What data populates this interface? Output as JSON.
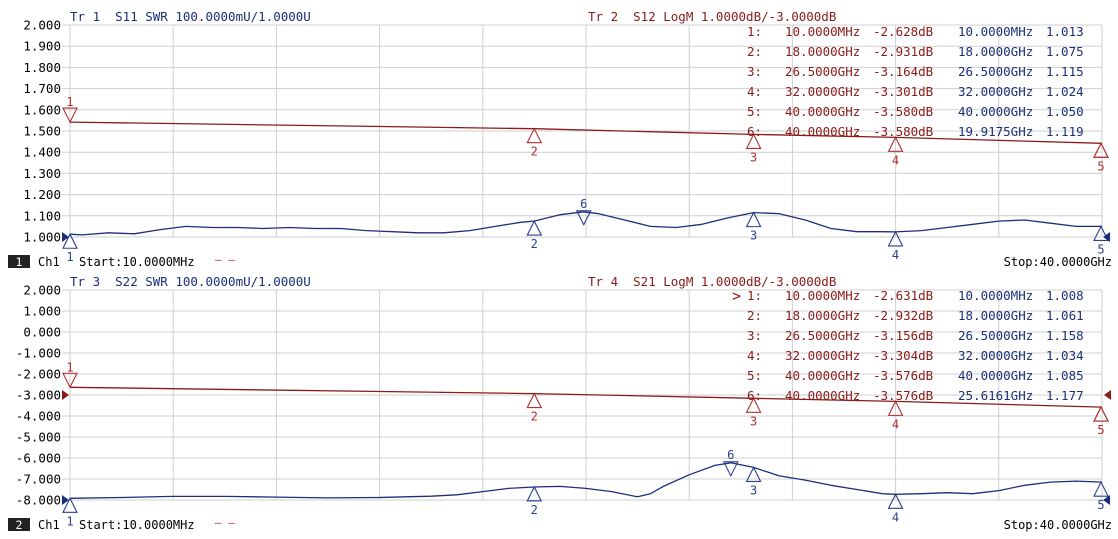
{
  "colors": {
    "trace_blue": "#1b2f7a",
    "trace_red": "#8b1a1a",
    "marker_blue": "#2a3f8f",
    "marker_red": "#b03030",
    "grid": "#cfcfcf",
    "channel_badge_bg": "#222222",
    "channel_badge_fg": "#ffffff"
  },
  "panels": [
    {
      "channel_badge": "1",
      "channel_label": "Ch1",
      "start_label": "Start:10.0000MHz",
      "stop_label": "Stop:40.0000GHz",
      "channel_dash": "— —",
      "tr_a": "Tr 1  S11 SWR 100.0000mU/1.0000U",
      "tr_b": "Tr 2  S12 LogM 1.0000dB/-3.0000dB",
      "active_mark": "",
      "marker_rows": [
        {
          "num": "1:",
          "freq_a": "10.0000MHz",
          "val_a": "-2.628dB",
          "freq_b": "10.0000MHz",
          "val_b": "1.013"
        },
        {
          "num": "2:",
          "freq_a": "18.0000GHz",
          "val_a": "-2.931dB",
          "freq_b": "18.0000GHz",
          "val_b": "1.075"
        },
        {
          "num": "3:",
          "freq_a": "26.5000GHz",
          "val_a": "-3.164dB",
          "freq_b": "26.5000GHz",
          "val_b": "1.115"
        },
        {
          "num": "4:",
          "freq_a": "32.0000GHz",
          "val_a": "-3.301dB",
          "freq_b": "32.0000GHz",
          "val_b": "1.024"
        },
        {
          "num": "5:",
          "freq_a": "40.0000GHz",
          "val_a": "-3.580dB",
          "freq_b": "40.0000GHz",
          "val_b": "1.050"
        },
        {
          "num": "6:",
          "freq_a": "40.0000GHz",
          "val_a": "-3.580dB",
          "freq_b": "19.9175GHz",
          "val_b": "1.119"
        }
      ]
    },
    {
      "channel_badge": "2",
      "channel_label": "Ch1",
      "start_label": "Start:10.0000MHz",
      "stop_label": "Stop:40.0000GHz",
      "channel_dash": "— —",
      "tr_a": "Tr 3  S22 SWR 100.0000mU/1.0000U",
      "tr_b": "Tr 4  S21 LogM 1.0000dB/-3.0000dB",
      "active_mark": ">",
      "marker_rows": [
        {
          "num": "1:",
          "freq_a": "10.0000MHz",
          "val_a": "-2.631dB",
          "freq_b": "10.0000MHz",
          "val_b": "1.008"
        },
        {
          "num": "2:",
          "freq_a": "18.0000GHz",
          "val_a": "-2.932dB",
          "freq_b": "18.0000GHz",
          "val_b": "1.061"
        },
        {
          "num": "3:",
          "freq_a": "26.5000GHz",
          "val_a": "-3.156dB",
          "freq_b": "26.5000GHz",
          "val_b": "1.158"
        },
        {
          "num": "4:",
          "freq_a": "32.0000GHz",
          "val_a": "-3.304dB",
          "freq_b": "32.0000GHz",
          "val_b": "1.034"
        },
        {
          "num": "5:",
          "freq_a": "40.0000GHz",
          "val_a": "-3.576dB",
          "freq_b": "40.0000GHz",
          "val_b": "1.085"
        },
        {
          "num": "6:",
          "freq_a": "40.0000GHz",
          "val_a": "-3.576dB",
          "freq_b": "25.6161GHz",
          "val_b": "1.177"
        }
      ]
    }
  ],
  "chart_data": [
    {
      "type": "line",
      "x_unit": "GHz",
      "xlim": [
        0.01,
        40
      ],
      "ylim": [
        1.0,
        2.0
      ],
      "yticks": [
        "2.000",
        "1.900",
        "1.800",
        "1.700",
        "1.600",
        "1.500",
        "1.400",
        "1.300",
        "1.200",
        "1.100",
        "1.000"
      ],
      "series": [
        {
          "color": "blue",
          "x": [
            0.01,
            0.5,
            1.5,
            2.5,
            3.5,
            4.5,
            5.5,
            6.5,
            7.5,
            8.5,
            9.5,
            10.5,
            11.5,
            12.5,
            13.5,
            14.5,
            15.5,
            16.5,
            17.5,
            18.0,
            18.5,
            19.0,
            19.9175,
            20.5,
            21.5,
            22.5,
            23.5,
            24.5,
            25.5,
            26.5,
            27.5,
            28.5,
            29.5,
            30.5,
            31.5,
            32.0,
            33.0,
            34.0,
            35.0,
            36.0,
            37.0,
            38.0,
            39.0,
            40.0
          ],
          "y": [
            1.013,
            1.01,
            1.02,
            1.015,
            1.035,
            1.05,
            1.045,
            1.045,
            1.04,
            1.045,
            1.04,
            1.04,
            1.03,
            1.025,
            1.02,
            1.02,
            1.03,
            1.05,
            1.07,
            1.075,
            1.09,
            1.105,
            1.119,
            1.11,
            1.08,
            1.05,
            1.045,
            1.06,
            1.09,
            1.115,
            1.11,
            1.08,
            1.04,
            1.025,
            1.025,
            1.024,
            1.03,
            1.045,
            1.06,
            1.075,
            1.08,
            1.065,
            1.05,
            1.05
          ]
        },
        {
          "color": "red",
          "x": [
            0.01,
            18.0,
            26.5,
            32.0,
            40.0
          ],
          "y": [
            1.542,
            1.511,
            1.484,
            1.47,
            1.442
          ]
        }
      ],
      "markers": [
        {
          "label": "1",
          "trace": "red",
          "x": 0.01,
          "y": 1.542
        },
        {
          "label": "2",
          "trace": "red",
          "x": 18.0,
          "y": 1.511
        },
        {
          "label": "3",
          "trace": "red",
          "x": 26.5,
          "y": 1.484
        },
        {
          "label": "4",
          "trace": "red",
          "x": 32.0,
          "y": 1.47
        },
        {
          "label": "5",
          "trace": "red",
          "x": 40.0,
          "y": 1.442
        },
        {
          "label": "6",
          "trace": "red",
          "x": 40.0,
          "y": 1.442
        },
        {
          "label": "1",
          "trace": "blue",
          "x": 0.01,
          "y": 1.013
        },
        {
          "label": "2",
          "trace": "blue",
          "x": 18.0,
          "y": 1.075
        },
        {
          "label": "3",
          "trace": "blue",
          "x": 26.5,
          "y": 1.115
        },
        {
          "label": "4",
          "trace": "blue",
          "x": 32.0,
          "y": 1.024
        },
        {
          "label": "5",
          "trace": "blue",
          "x": 40.0,
          "y": 1.05
        },
        {
          "label": "6",
          "trace": "blue",
          "x": 19.9175,
          "y": 1.119
        }
      ]
    },
    {
      "type": "line",
      "x_unit": "GHz",
      "xlim": [
        0.01,
        40
      ],
      "ylim": [
        -8.0,
        2.0
      ],
      "yticks": [
        "2.000",
        "1.000",
        "0.000",
        "-1.000",
        "-2.000",
        "-3.000",
        "-4.000",
        "-5.000",
        "-6.000",
        "-7.000",
        "-8.000"
      ],
      "series": [
        {
          "color": "blue",
          "x": [
            0.01,
            2.0,
            4.0,
            6.0,
            8.0,
            10.0,
            12.0,
            14.0,
            15.0,
            16.0,
            17.0,
            18.0,
            19.0,
            20.0,
            21.0,
            22.0,
            22.5,
            23.0,
            24.0,
            25.0,
            25.6161,
            26.5,
            27.5,
            28.5,
            29.5,
            30.5,
            31.5,
            32.0,
            33.0,
            34.0,
            35.0,
            36.0,
            37.0,
            38.0,
            39.0,
            40.0
          ],
          "y": [
            -7.92,
            -7.88,
            -7.83,
            -7.83,
            -7.86,
            -7.9,
            -7.88,
            -7.82,
            -7.75,
            -7.6,
            -7.45,
            -7.38,
            -7.35,
            -7.45,
            -7.6,
            -7.85,
            -7.7,
            -7.35,
            -6.8,
            -6.35,
            -6.23,
            -6.45,
            -6.85,
            -7.05,
            -7.3,
            -7.5,
            -7.7,
            -7.73,
            -7.7,
            -7.65,
            -7.7,
            -7.55,
            -7.3,
            -7.15,
            -7.1,
            -7.15
          ]
        },
        {
          "color": "red",
          "x": [
            0.01,
            18.0,
            26.5,
            32.0,
            40.0
          ],
          "y": [
            -2.631,
            -2.932,
            -3.156,
            -3.304,
            -3.576
          ]
        }
      ],
      "markers": [
        {
          "label": "1",
          "trace": "red",
          "x": 0.01,
          "y": -2.631
        },
        {
          "label": "2",
          "trace": "red",
          "x": 18.0,
          "y": -2.932
        },
        {
          "label": "3",
          "trace": "red",
          "x": 26.5,
          "y": -3.156
        },
        {
          "label": "4",
          "trace": "red",
          "x": 32.0,
          "y": -3.304
        },
        {
          "label": "5",
          "trace": "red",
          "x": 40.0,
          "y": -3.576
        },
        {
          "label": "6",
          "trace": "red",
          "x": 40.0,
          "y": -3.576
        },
        {
          "label": "1",
          "trace": "blue",
          "x": 0.01,
          "y": -7.92
        },
        {
          "label": "2",
          "trace": "blue",
          "x": 18.0,
          "y": -7.38
        },
        {
          "label": "3",
          "trace": "blue",
          "x": 26.5,
          "y": -6.45
        },
        {
          "label": "4",
          "trace": "blue",
          "x": 32.0,
          "y": -7.73
        },
        {
          "label": "5",
          "trace": "blue",
          "x": 40.0,
          "y": -7.15
        },
        {
          "label": "6",
          "trace": "blue",
          "x": 25.6161,
          "y": -6.23
        }
      ]
    }
  ]
}
